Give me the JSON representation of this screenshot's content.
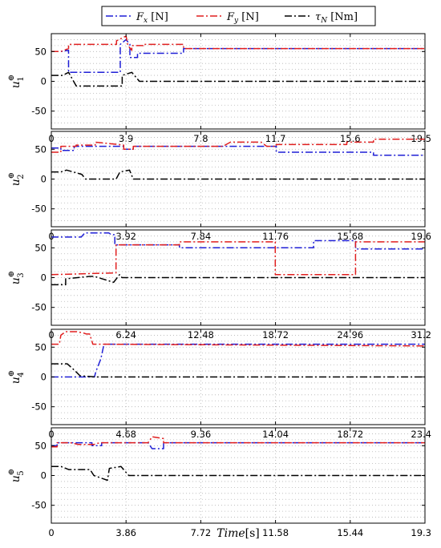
{
  "legend": {
    "entries": [
      {
        "label": "Fx [N]",
        "symbol": "F",
        "sub": "x",
        "unit": " [N]",
        "color": "#1f1fd6"
      },
      {
        "label": "Fy [N]",
        "symbol": "F",
        "sub": "y",
        "unit": " [N]",
        "color": "#e01f1f"
      },
      {
        "label": "τN [Nm]",
        "symbol": "τ",
        "sub": "N",
        "unit": " [Nm]",
        "color": "#000000"
      }
    ]
  },
  "xlabel": {
    "var": "Time",
    "unit": "[s]"
  },
  "colors": {
    "fx": "#1f1fd6",
    "fy": "#e01f1f",
    "tau": "#000000",
    "grid": "#b4b4b4"
  },
  "chart_data": [
    {
      "type": "line",
      "ylabel": "u1⊕",
      "ylabel_sub": "1",
      "xlim": [
        0,
        19.5
      ],
      "ylim": [
        -80,
        80
      ],
      "xticks": [
        "0",
        "3.9",
        "7.8",
        "11.7",
        "15.6",
        "19.5"
      ],
      "yticks": [
        50,
        0,
        -50
      ],
      "series": [
        {
          "name": "Fx [N]",
          "x": [
            0,
            0.5,
            0.9,
            0.9,
            3.6,
            3.6,
            3.9,
            4.1,
            4.1,
            4.5,
            4.5,
            6.9,
            6.9,
            19.5
          ],
          "y": [
            50,
            50,
            52,
            15,
            15,
            62,
            70,
            62,
            40,
            40,
            47,
            47,
            55,
            55
          ]
        },
        {
          "name": "Fy [N]",
          "x": [
            0,
            0.5,
            0.9,
            0.9,
            3.4,
            3.4,
            3.9,
            4.0,
            4.2,
            4.2,
            4.8,
            4.8,
            6.9,
            6.9,
            19.5
          ],
          "y": [
            50,
            50,
            55,
            62,
            62,
            68,
            76,
            60,
            52,
            60,
            60,
            62,
            62,
            55,
            55
          ]
        },
        {
          "name": "τN [Nm]",
          "x": [
            0,
            0.6,
            0.9,
            1.3,
            1.3,
            3.7,
            3.7,
            4.2,
            4.6,
            4.6,
            19.5
          ],
          "y": [
            10,
            10,
            15,
            -8,
            -8,
            -8,
            10,
            15,
            0,
            0,
            0
          ]
        }
      ]
    },
    {
      "type": "line",
      "ylabel": "u2⊕",
      "ylabel_sub": "2",
      "xlim": [
        0,
        19.6
      ],
      "ylim": [
        -80,
        80
      ],
      "xticks": [
        "0",
        "3.92",
        "7.84",
        "11.76",
        "15.68",
        "19.6"
      ],
      "yticks": [
        50,
        0,
        -50
      ],
      "series": [
        {
          "name": "Fx [N]",
          "x": [
            0,
            0.5,
            0.5,
            1.2,
            1.2,
            2.4,
            2.4,
            3.8,
            3.8,
            4.3,
            4.3,
            9.2,
            9.2,
            11.8,
            11.8,
            14.8,
            14.8,
            16.9,
            16.9,
            19.6
          ],
          "y": [
            52,
            52,
            48,
            48,
            55,
            55,
            55,
            55,
            50,
            50,
            55,
            55,
            55,
            55,
            45,
            45,
            45,
            45,
            40,
            40
          ]
        },
        {
          "name": "Fy [N]",
          "x": [
            0,
            0.5,
            0.5,
            1.3,
            1.3,
            2.3,
            2.3,
            3.8,
            3.8,
            4.3,
            4.3,
            9.0,
            9.4,
            11.0,
            11.3,
            11.8,
            11.8,
            15.5,
            15.5,
            16.9,
            16.9,
            19.6
          ],
          "y": [
            45,
            45,
            55,
            55,
            57,
            57,
            62,
            57,
            50,
            50,
            55,
            55,
            62,
            62,
            55,
            55,
            58,
            58,
            62,
            62,
            67,
            67
          ]
        },
        {
          "name": "τN [Nm]",
          "x": [
            0,
            0.5,
            0.8,
            1.6,
            1.8,
            3.4,
            3.6,
            4.1,
            4.3,
            19.6
          ],
          "y": [
            12,
            12,
            15,
            8,
            0,
            0,
            12,
            15,
            0,
            0
          ]
        }
      ]
    },
    {
      "type": "line",
      "ylabel": "u3⊕",
      "ylabel_sub": "3",
      "xlim": [
        0,
        31.2
      ],
      "ylim": [
        -80,
        80
      ],
      "xticks": [
        "0",
        "6.24",
        "12.48",
        "18.72",
        "24.96",
        "31.2"
      ],
      "yticks": [
        50,
        0,
        -50
      ],
      "series": [
        {
          "name": "Fx [N]",
          "x": [
            0,
            2.5,
            2.8,
            4.8,
            5.0,
            5.3,
            5.3,
            10.7,
            10.7,
            21.9,
            21.9,
            25.4,
            25.4,
            31.2
          ],
          "y": [
            68,
            68,
            75,
            75,
            72,
            72,
            55,
            55,
            50,
            50,
            62,
            62,
            48,
            48
          ]
        },
        {
          "name": "Fy [N]",
          "x": [
            0,
            5.4,
            5.4,
            10.7,
            10.7,
            18.7,
            18.7,
            25.4,
            25.4,
            31.2
          ],
          "y": [
            5,
            8,
            55,
            55,
            60,
            60,
            5,
            5,
            60,
            60
          ]
        },
        {
          "name": "τN [Nm]",
          "x": [
            0,
            1.2,
            1.2,
            3.2,
            3.6,
            5.2,
            5.7,
            5.9,
            31.2
          ],
          "y": [
            -12,
            -12,
            -2,
            2,
            2,
            -8,
            5,
            0,
            0
          ]
        }
      ]
    },
    {
      "type": "line",
      "ylabel": "u4⊕",
      "ylabel_sub": "4",
      "xlim": [
        0,
        23.4
      ],
      "ylim": [
        -80,
        80
      ],
      "xticks": [
        "0",
        "4.68",
        "9.36",
        "14.04",
        "18.72",
        "23.4"
      ],
      "yticks": [
        50,
        0,
        -50
      ],
      "series": [
        {
          "name": "Fx [N]",
          "x": [
            0,
            2.7,
            2.8,
            3.1,
            3.3,
            23.4
          ],
          "y": [
            0,
            0,
            10,
            30,
            55,
            55
          ]
        },
        {
          "name": "Fy [N]",
          "x": [
            0,
            0.5,
            0.6,
            0.9,
            1.6,
            2.0,
            2.2,
            2.4,
            2.6,
            3.1,
            23.4
          ],
          "y": [
            55,
            55,
            70,
            76,
            76,
            74,
            72,
            72,
            55,
            55,
            52
          ]
        },
        {
          "name": "τN [Nm]",
          "x": [
            0,
            1.0,
            1.5,
            1.8,
            2.8,
            23.4
          ],
          "y": [
            22,
            22,
            10,
            2,
            0,
            0
          ]
        }
      ]
    },
    {
      "type": "line",
      "ylabel": "u5⊕",
      "ylabel_sub": "5",
      "xlim": [
        0,
        19.3
      ],
      "ylim": [
        -80,
        80
      ],
      "xticks": [
        "0",
        "3.86",
        "7.72",
        "11.58",
        "15.44",
        "19.3"
      ],
      "yticks": [
        50,
        0,
        -50
      ],
      "series": [
        {
          "name": "Fx [N]",
          "x": [
            0,
            0.3,
            0.3,
            2.1,
            2.1,
            2.6,
            2.6,
            5.0,
            5.2,
            5.8,
            5.8,
            19.3
          ],
          "y": [
            50,
            50,
            55,
            55,
            50,
            50,
            55,
            55,
            45,
            45,
            55,
            55
          ]
        },
        {
          "name": "Fy [N]",
          "x": [
            0,
            0.3,
            0.3,
            1.0,
            1.4,
            2.2,
            2.5,
            5.0,
            5.2,
            5.8,
            5.8,
            19.3
          ],
          "y": [
            48,
            48,
            55,
            55,
            52,
            52,
            55,
            55,
            65,
            62,
            55,
            55
          ]
        },
        {
          "name": "τN [Nm]",
          "x": [
            0,
            0.5,
            0.9,
            2.0,
            2.2,
            2.9,
            3.0,
            3.6,
            4.0,
            19.3
          ],
          "y": [
            15,
            15,
            10,
            10,
            0,
            -8,
            12,
            15,
            0,
            0
          ]
        }
      ]
    }
  ]
}
